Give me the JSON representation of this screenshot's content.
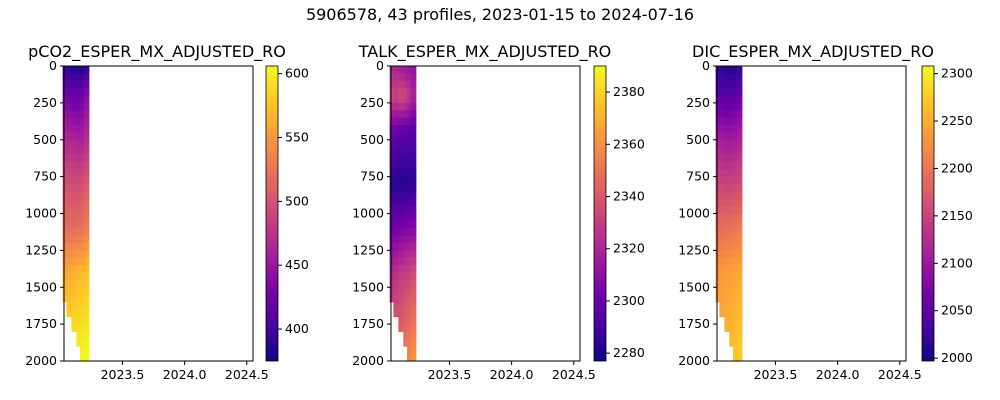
{
  "figure_title": "5906578, 43 profiles, 2023-01-15 to 2024-07-16",
  "colormap": [
    "#0d0887",
    "#46039f",
    "#7201a8",
    "#9c179e",
    "#bd3786",
    "#d8576b",
    "#ed7953",
    "#fb9f3a",
    "#fdca26",
    "#f0f921"
  ],
  "chart_data": [
    {
      "type": "heatmap",
      "title": "pCO2_ESPER_MX_ADJUSTED_RO",
      "xlabel": "",
      "ylabel": "",
      "x_ticks": [
        "2023.5",
        "2024.0",
        "2024.5"
      ],
      "y_ticks": [
        "0",
        "250",
        "500",
        "750",
        "1000",
        "1250",
        "1500",
        "1750",
        "2000"
      ],
      "xlim": [
        2023.03,
        2024.55
      ],
      "ylim": [
        2000,
        0
      ],
      "depth_bins": [
        0,
        50,
        100,
        150,
        200,
        250,
        300,
        350,
        400,
        450,
        500,
        550,
        600,
        650,
        700,
        750,
        800,
        850,
        900,
        950,
        1000,
        1050,
        1100,
        1150,
        1200,
        1250,
        1300,
        1350,
        1400,
        1450,
        1500,
        1550,
        1600,
        1650,
        1700,
        1750,
        1800,
        1850,
        1900,
        1950,
        2000
      ],
      "times": [
        2023.04,
        2023.07,
        2023.11,
        2023.15,
        2023.18,
        2023.21
      ],
      "max_depth": [
        1600,
        1700,
        1800,
        1900,
        2000,
        2000
      ],
      "values": [
        [
          395,
          430,
          470,
          500,
          520,
          560,
          600
        ],
        [
          390,
          425,
          465,
          498,
          520,
          562,
          602
        ],
        [
          385,
          420,
          465,
          495,
          518,
          565,
          604
        ],
        [
          385,
          420,
          460,
          495,
          520,
          568,
          605
        ],
        [
          380,
          425,
          462,
          498,
          522,
          570,
          606
        ],
        [
          390,
          440,
          470,
          505,
          530,
          575,
          608
        ]
      ],
      "value_profile_depths": [
        0,
        200,
        500,
        800,
        1100,
        1400,
        2000
      ],
      "colorbar": {
        "min": 375,
        "max": 606,
        "ticks": [
          "400",
          "450",
          "500",
          "550",
          "600"
        ],
        "tick_values": [
          400,
          450,
          500,
          550,
          600
        ]
      }
    },
    {
      "type": "heatmap",
      "title": "TALK_ESPER_MX_ADJUSTED_RO",
      "xlabel": "",
      "ylabel": "",
      "x_ticks": [
        "2023.5",
        "2024.0",
        "2024.5"
      ],
      "y_ticks": [
        "0",
        "250",
        "500",
        "750",
        "1000",
        "1250",
        "1500",
        "1750",
        "2000"
      ],
      "xlim": [
        2023.03,
        2024.55
      ],
      "ylim": [
        2000,
        0
      ],
      "depth_bins": [
        0,
        50,
        100,
        150,
        200,
        250,
        300,
        350,
        400,
        450,
        500,
        550,
        600,
        650,
        700,
        750,
        800,
        850,
        900,
        950,
        1000,
        1050,
        1100,
        1150,
        1200,
        1250,
        1300,
        1350,
        1400,
        1450,
        1500,
        1550,
        1600,
        1650,
        1700,
        1750,
        1800,
        1850,
        1900,
        1950,
        2000
      ],
      "times": [
        2023.04,
        2023.07,
        2023.11,
        2023.15,
        2023.18,
        2023.21
      ],
      "max_depth": [
        1600,
        1700,
        1800,
        1900,
        2000,
        2000
      ],
      "values": [
        [
          2322,
          2335,
          2300,
          2284,
          2300,
          2322,
          2348
        ],
        [
          2318,
          2332,
          2298,
          2283,
          2302,
          2325,
          2350
        ],
        [
          2315,
          2336,
          2296,
          2282,
          2303,
          2328,
          2352
        ],
        [
          2314,
          2334,
          2295,
          2282,
          2305,
          2330,
          2355
        ],
        [
          2312,
          2328,
          2295,
          2283,
          2306,
          2332,
          2358
        ],
        [
          2310,
          2320,
          2294,
          2284,
          2308,
          2335,
          2362
        ]
      ],
      "value_profile_depths": [
        0,
        200,
        450,
        800,
        1100,
        1400,
        2000
      ],
      "colorbar": {
        "min": 2277,
        "max": 2390,
        "ticks": [
          "2280",
          "2300",
          "2320",
          "2340",
          "2360",
          "2380"
        ],
        "tick_values": [
          2280,
          2300,
          2320,
          2340,
          2360,
          2380
        ]
      }
    },
    {
      "type": "heatmap",
      "title": "DIC_ESPER_MX_ADJUSTED_RO",
      "xlabel": "",
      "ylabel": "",
      "x_ticks": [
        "2023.5",
        "2024.0",
        "2024.5"
      ],
      "y_ticks": [
        "0",
        "250",
        "500",
        "750",
        "1000",
        "1250",
        "1500",
        "1750",
        "2000"
      ],
      "xlim": [
        2023.03,
        2024.55
      ],
      "ylim": [
        2000,
        0
      ],
      "depth_bins": [
        0,
        50,
        100,
        150,
        200,
        250,
        300,
        350,
        400,
        450,
        500,
        550,
        600,
        650,
        700,
        750,
        800,
        850,
        900,
        950,
        1000,
        1050,
        1100,
        1150,
        1200,
        1250,
        1300,
        1350,
        1400,
        1450,
        1500,
        1550,
        1600,
        1650,
        1700,
        1750,
        1800,
        1850,
        1900,
        1950,
        2000
      ],
      "times": [
        2023.04,
        2023.07,
        2023.11,
        2023.15,
        2023.18,
        2023.21
      ],
      "max_depth": [
        1600,
        1700,
        1800,
        1900,
        2000,
        2000
      ],
      "values": [
        [
          2020,
          2050,
          2110,
          2150,
          2190,
          2230,
          2255
        ],
        [
          2015,
          2048,
          2108,
          2150,
          2192,
          2235,
          2258
        ],
        [
          2010,
          2045,
          2105,
          2148,
          2195,
          2238,
          2262
        ],
        [
          2010,
          2048,
          2105,
          2150,
          2198,
          2240,
          2266
        ],
        [
          2005,
          2050,
          2108,
          2152,
          2200,
          2242,
          2270
        ],
        [
          2015,
          2060,
          2115,
          2158,
          2205,
          2248,
          2275
        ]
      ],
      "value_profile_depths": [
        0,
        200,
        500,
        800,
        1100,
        1400,
        2000
      ],
      "colorbar": {
        "min": 1997,
        "max": 2308,
        "ticks": [
          "2000",
          "2050",
          "2100",
          "2150",
          "2200",
          "2250",
          "2300"
        ],
        "tick_values": [
          2000,
          2050,
          2100,
          2150,
          2200,
          2250,
          2300
        ]
      }
    }
  ]
}
